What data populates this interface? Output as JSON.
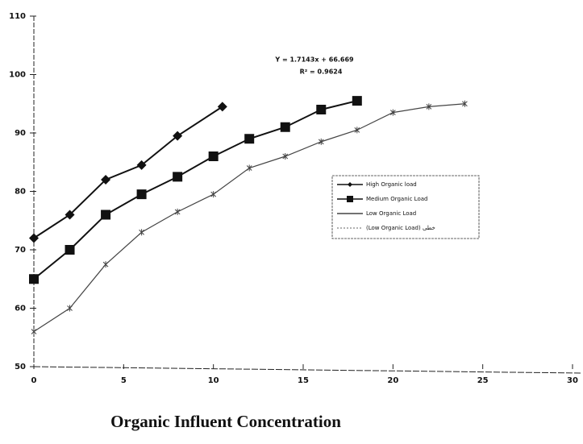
{
  "chart_data": {
    "type": "line",
    "x_label": "Organic Influent Concentration",
    "annotations": [
      "Y = 1.7143x + 66.669",
      "R² = 0.9624"
    ],
    "series": [
      {
        "name": "High Organic load",
        "color": "#111111",
        "marker": "diamond",
        "x": [
          0,
          2,
          4,
          6,
          8,
          10.5
        ],
        "values": [
          72,
          76,
          82,
          84.5,
          89.5,
          94.5
        ]
      },
      {
        "name": "Medium Organic Load",
        "color": "#111111",
        "marker": "square",
        "x": [
          0,
          2,
          4,
          6,
          8,
          10,
          12,
          14,
          16,
          18
        ],
        "values": [
          65,
          70,
          76,
          79.5,
          82.5,
          86,
          89,
          91,
          94,
          95.5
        ]
      },
      {
        "name": "Low Organic Load",
        "color": "#444444",
        "marker": "star",
        "x": [
          0,
          2,
          4,
          6,
          8,
          10,
          12,
          14,
          16,
          18,
          20,
          22,
          24
        ],
        "values": [
          56,
          60,
          67.5,
          73,
          76.5,
          79.5,
          84,
          86,
          88.5,
          90.5,
          93.5,
          94.5,
          95
        ]
      },
      {
        "name": "(Low Organic Load) خطی",
        "color": "#666666",
        "marker": "none",
        "x": [],
        "values": []
      }
    ],
    "xlim": [
      0,
      30
    ],
    "xticks": [
      0,
      5,
      10,
      15,
      20,
      25,
      30
    ],
    "ylim": [
      50,
      110
    ],
    "yticks": [
      50,
      60,
      70,
      80,
      90,
      100,
      110
    ]
  }
}
